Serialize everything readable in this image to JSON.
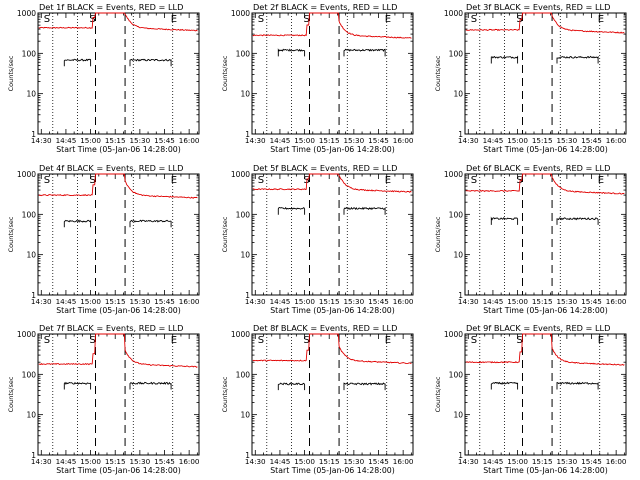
{
  "colors": {
    "events": "#000000",
    "lld": "#e00000",
    "axes": "#000000",
    "background": "#ffffff"
  },
  "shared": {
    "xlabel": "Start Time (05-Jan-06 14:28:00)",
    "ylabel": "Counts/sec",
    "x_ticks": [
      "14:30",
      "14:45",
      "15:00",
      "15:15",
      "15:30",
      "15:45",
      "16:00"
    ],
    "x_tick_minutes": [
      30,
      45,
      60,
      75,
      90,
      105,
      120
    ],
    "y_ticks": [
      "1",
      "10",
      "100",
      "1000"
    ],
    "xlim_minutes": [
      28,
      126
    ],
    "ylim": [
      1,
      1000
    ],
    "y_scale": "log",
    "markers": {
      "start": "S",
      "end": "E"
    }
  },
  "chart_data": [
    {
      "type": "line",
      "title": "Det 1f BLACK = Events, RED = LLD",
      "series": [
        {
          "name": "Events",
          "level": 68
        },
        {
          "name": "LLD",
          "level": 430
        }
      ]
    },
    {
      "type": "line",
      "title": "Det 2f BLACK = Events, RED = LLD",
      "series": [
        {
          "name": "Events",
          "level": 120
        },
        {
          "name": "LLD",
          "level": 280
        }
      ]
    },
    {
      "type": "line",
      "title": "Det 3f BLACK = Events, RED = LLD",
      "series": [
        {
          "name": "Events",
          "level": 80
        },
        {
          "name": "LLD",
          "level": 380
        }
      ]
    },
    {
      "type": "line",
      "title": "Det 4f BLACK = Events, RED = LLD",
      "series": [
        {
          "name": "Events",
          "level": 68
        },
        {
          "name": "LLD",
          "level": 300
        }
      ]
    },
    {
      "type": "line",
      "title": "Det 5f BLACK = Events, RED = LLD",
      "series": [
        {
          "name": "Events",
          "level": 140
        },
        {
          "name": "LLD",
          "level": 420
        }
      ]
    },
    {
      "type": "line",
      "title": "Det 6f BLACK = Events, RED = LLD",
      "series": [
        {
          "name": "Events",
          "level": 78
        },
        {
          "name": "LLD",
          "level": 380
        }
      ]
    },
    {
      "type": "line",
      "title": "Det 7f BLACK = Events, RED = LLD",
      "series": [
        {
          "name": "Events",
          "level": 60
        },
        {
          "name": "LLD",
          "level": 180
        }
      ]
    },
    {
      "type": "line",
      "title": "Det 8f BLACK = Events, RED = LLD",
      "series": [
        {
          "name": "Events",
          "level": 58
        },
        {
          "name": "LLD",
          "level": 220
        }
      ]
    },
    {
      "type": "line",
      "title": "Det 9f BLACK = Events, RED = LLD",
      "series": [
        {
          "name": "Events",
          "level": 60
        },
        {
          "name": "LLD",
          "level": 200
        }
      ]
    }
  ]
}
